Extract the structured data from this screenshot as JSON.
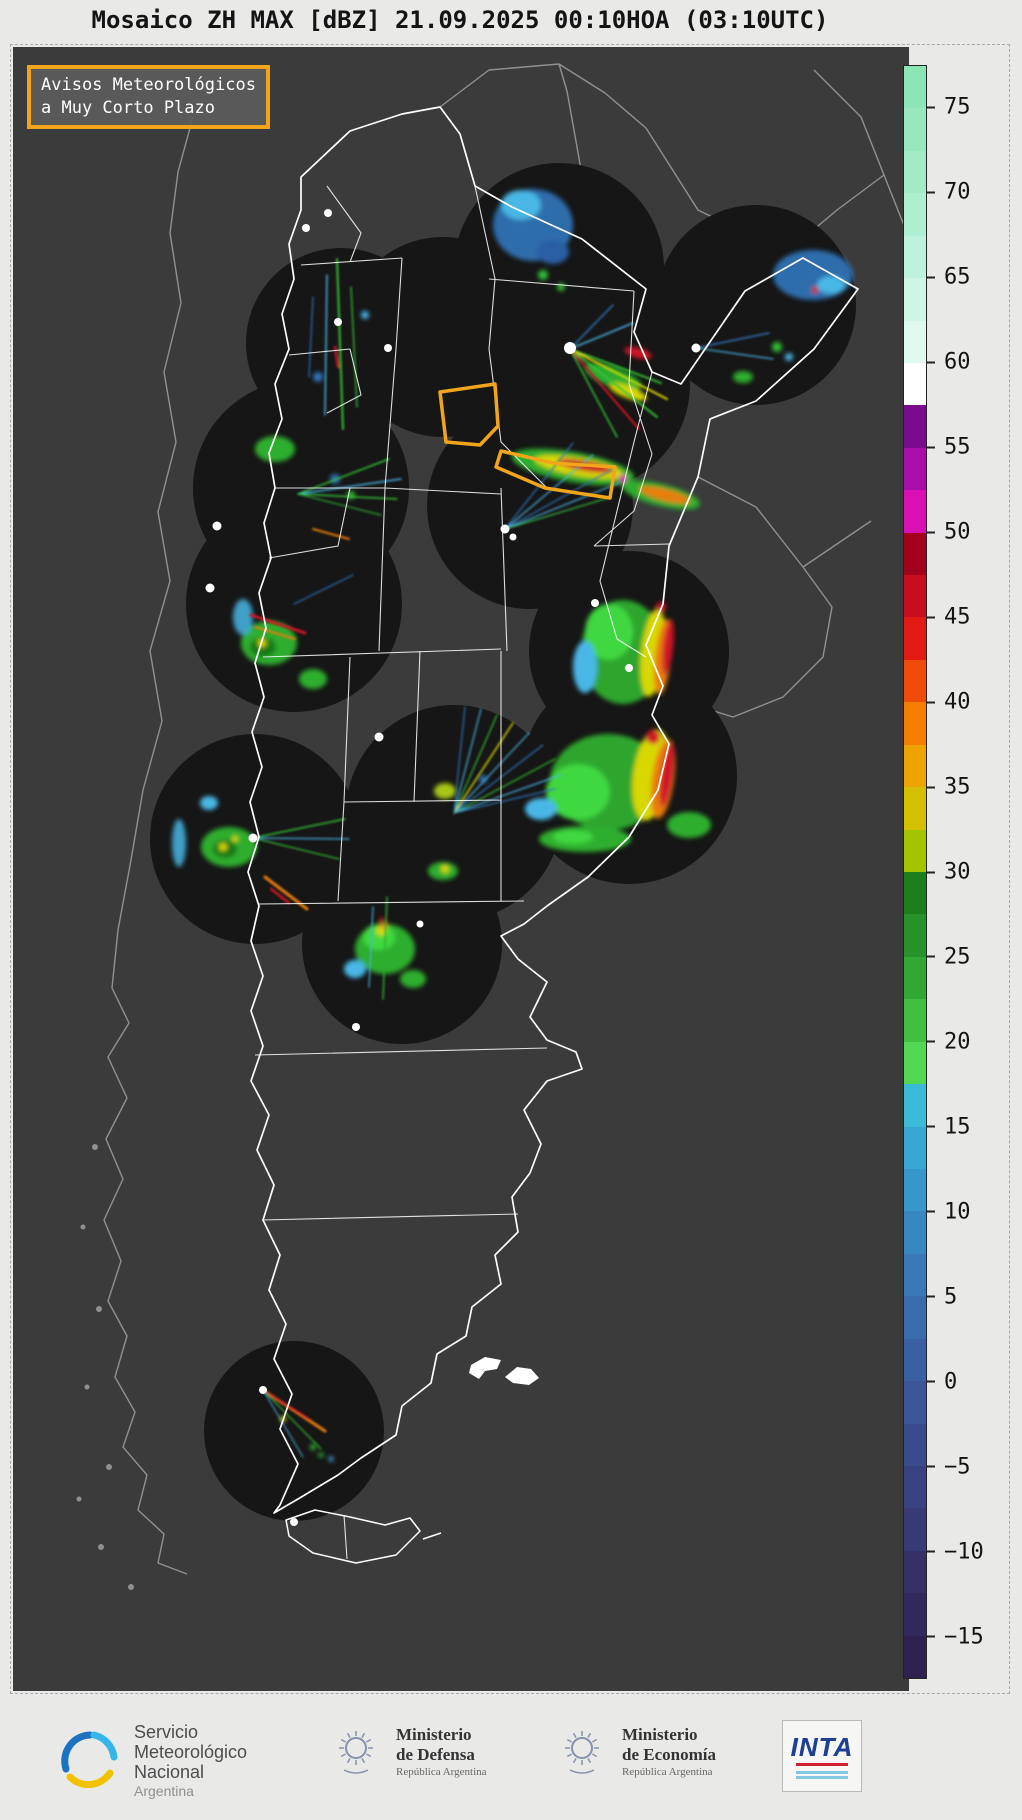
{
  "title": "Mosaico ZH MAX [dBZ] 21.09.2025 00:10HOA (03:10UTC)",
  "map": {
    "warning_legend": {
      "line1": "Avisos Meteorológicos",
      "line2": "a Muy Corto Plazo"
    },
    "background_color": "#3b3b3b",
    "warning_color": "#f2a51a",
    "border_color_country": "#ffffff",
    "border_color_neighbors": "#9a9a9a"
  },
  "colorbar": {
    "unit": "dBZ",
    "range": [
      -17.5,
      77.5
    ],
    "ticks": [
      {
        "value": 75,
        "label": "75"
      },
      {
        "value": 70,
        "label": "70"
      },
      {
        "value": 65,
        "label": "65"
      },
      {
        "value": 60,
        "label": "60"
      },
      {
        "value": 55,
        "label": "55"
      },
      {
        "value": 50,
        "label": "50"
      },
      {
        "value": 45,
        "label": "45"
      },
      {
        "value": 40,
        "label": "40"
      },
      {
        "value": 35,
        "label": "35"
      },
      {
        "value": 30,
        "label": "30"
      },
      {
        "value": 25,
        "label": "25"
      },
      {
        "value": 20,
        "label": "20"
      },
      {
        "value": 15,
        "label": "15"
      },
      {
        "value": 10,
        "label": "10"
      },
      {
        "value": 5,
        "label": "5"
      },
      {
        "value": 0,
        "label": "0"
      },
      {
        "value": -5,
        "label": "−5"
      },
      {
        "value": -10,
        "label": "−10"
      },
      {
        "value": -15,
        "label": "−15"
      }
    ],
    "segments": [
      "#8ce5b4",
      "#97e8bd",
      "#a3ebc7",
      "#b0eed1",
      "#bff2da",
      "#cff5e4",
      "#e0f9ee",
      "#ffffff",
      "#7a0b8e",
      "#a90daa",
      "#d911b4",
      "#a3001e",
      "#c80e1e",
      "#e11a14",
      "#ef4c0a",
      "#f57d00",
      "#eea400",
      "#d3c000",
      "#a4c400",
      "#1c7e1c",
      "#27922a",
      "#33a733",
      "#41bf41",
      "#52d852",
      "#3bbcd6",
      "#38a8d2",
      "#3897c9",
      "#3888c0",
      "#3979b6",
      "#3a6cac",
      "#3b60a2",
      "#3b5597",
      "#3a4b8c",
      "#394280",
      "#373a74",
      "#343167",
      "#31295b",
      "#2e214f"
    ]
  },
  "footer": {
    "smn": {
      "lines": [
        "Servicio",
        "Meteorológico",
        "Nacional"
      ],
      "country": "Argentina"
    },
    "defensa": {
      "line1": "Ministerio",
      "line2": "de Defensa",
      "sub": "República Argentina"
    },
    "economia": {
      "line1": "Ministerio",
      "line2": "de Economía",
      "sub": "República Argentina"
    },
    "inta": {
      "label": "INTA"
    }
  }
}
